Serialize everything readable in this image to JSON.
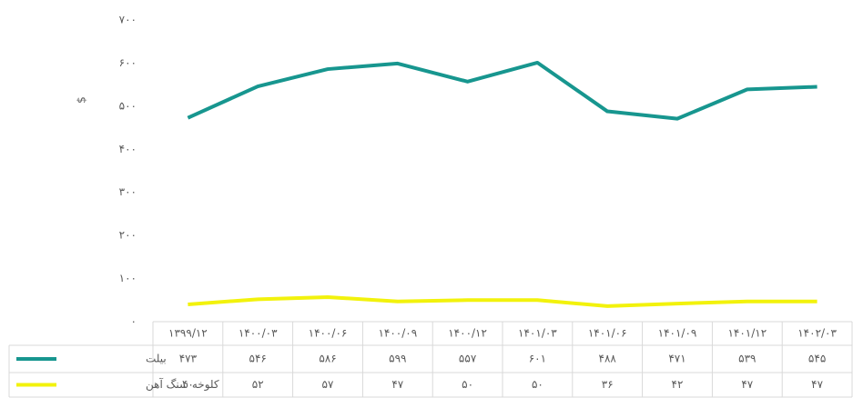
{
  "chart_data": {
    "type": "line",
    "y_label": "$",
    "categories": [
      "۱۳۹۹/۱۲",
      "۱۴۰۰/۰۳",
      "۱۴۰۰/۰۶",
      "۱۴۰۰/۰۹",
      "۱۴۰۰/۱۲",
      "۱۴۰۱/۰۳",
      "۱۴۰۱/۰۶",
      "۱۴۰۱/۰۹",
      "۱۴۰۱/۱۲",
      "۱۴۰۲/۰۳"
    ],
    "series": [
      {
        "name": "بیلت",
        "color": "#17968f",
        "values": [
          473,
          546,
          586,
          599,
          557,
          601,
          488,
          471,
          539,
          545
        ],
        "value_labels": [
          "۴۷۳",
          "۵۴۶",
          "۵۸۶",
          "۵۹۹",
          "۵۵۷",
          "۶۰۱",
          "۴۸۸",
          "۴۷۱",
          "۵۳۹",
          "۵۴۵"
        ]
      },
      {
        "name": "کلوخه سنگ آهن",
        "color": "#f2f20c",
        "values": [
          40,
          52,
          57,
          47,
          50,
          50,
          36,
          42,
          47,
          47
        ],
        "value_labels": [
          "۴۰",
          "۵۲",
          "۵۷",
          "۴۷",
          "۵۰",
          "۵۰",
          "۳۶",
          "۴۲",
          "۴۷",
          "۴۷"
        ]
      }
    ],
    "ylim": [
      0,
      700
    ],
    "yticks": [
      {
        "value": 0,
        "label": "۰"
      },
      {
        "value": 100,
        "label": "۱۰۰"
      },
      {
        "value": 200,
        "label": "۲۰۰"
      },
      {
        "value": 300,
        "label": "۳۰۰"
      },
      {
        "value": 400,
        "label": "۴۰۰"
      },
      {
        "value": 500,
        "label": "۵۰۰"
      },
      {
        "value": 600,
        "label": "۶۰۰"
      },
      {
        "value": 700,
        "label": "۷۰۰"
      }
    ],
    "grid": false,
    "legend": "table"
  }
}
